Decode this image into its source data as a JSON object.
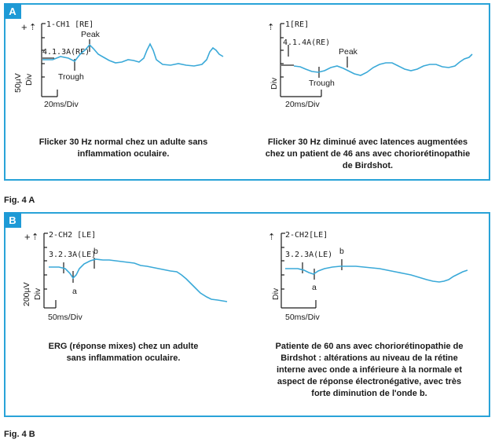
{
  "panelA": {
    "badge": "A",
    "left": {
      "channel": "1-CH1 [RE]",
      "marker": "4.1.3A(RE)",
      "peak": "Peak",
      "trough": "Trough",
      "yscale": "50µV",
      "ydiv": "Div",
      "xscale": "20ms/Div",
      "caption": [
        "Flicker 30 Hz normal chez un adulte sans",
        "inflammation oculaire."
      ]
    },
    "right": {
      "channel": "1[RE]",
      "marker": "4.1.4A(RE)",
      "peak": "Peak",
      "trough": "Trough",
      "ydiv": "Div",
      "xscale": "20ms/Div",
      "caption": [
        "Flicker 30 Hz diminué avec latences augmentées",
        "chez un patient de 46 ans avec choriorétinopathie",
        "de Birdshot."
      ]
    },
    "fig": "Fig. 4 A"
  },
  "panelB": {
    "badge": "B",
    "left": {
      "channel": "2-CH2 [LE]",
      "marker": "3.2.3A(LE)",
      "wave_a": "a",
      "wave_b": "b",
      "yscale": "200µV",
      "ydiv": "Div",
      "xscale": "50ms/Div",
      "caption": [
        "ERG (réponse mixes) chez un adulte",
        "sans inflammation oculaire."
      ]
    },
    "right": {
      "channel": "2-CH2[LE]",
      "marker": "3.2.3A(LE)",
      "wave_a": "a",
      "wave_b": "b",
      "ydiv": "Div",
      "xscale": "50ms/Div",
      "caption": [
        "Patiente de 60 ans avec choriorétinopathie de",
        "Birdshot : altérations au niveau de la rétine",
        "interne avec onde a inférieure à la normale et",
        "aspect de réponse électronégative, avec très",
        "forte diminution de l'onde b."
      ]
    },
    "fig": "Fig. 4 B"
  },
  "symbols": {
    "plus": "+",
    "arrow": "⇡"
  },
  "colors": {
    "accent": "#1e9ad6",
    "trace": "#3aa9d8",
    "axis": "#1a1a1a"
  }
}
